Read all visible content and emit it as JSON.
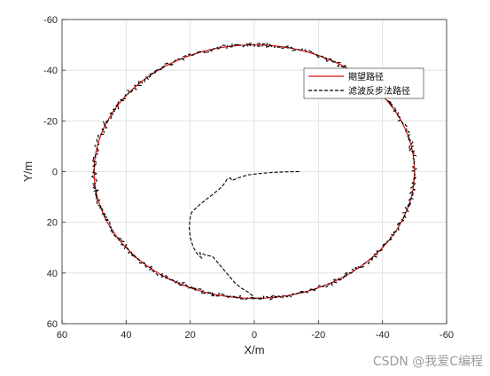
{
  "chart_data": {
    "type": "line",
    "xlabel": "X/m",
    "ylabel": "Y/m",
    "xlim": [
      60,
      -60
    ],
    "ylim": [
      -60,
      60
    ],
    "x_reversed": true,
    "y_reversed": true,
    "grid": true,
    "legend_position": "top-right",
    "xticks": [
      "60",
      "40",
      "20",
      "0",
      "-20",
      "-40",
      "-60"
    ],
    "yticks": [
      "-60",
      "-40",
      "-20",
      "0",
      "20",
      "40",
      "60"
    ],
    "series": [
      {
        "name": "期望路径",
        "color": "#e01010",
        "style": "solid",
        "shape": "circle",
        "center": [
          0,
          0
        ],
        "radius": 50
      },
      {
        "name": "滤波反步法路径",
        "color": "#000000",
        "style": "dashed",
        "noise": 0.8,
        "segments": [
          {
            "kind": "points",
            "points": [
              [
                -14,
                0
              ],
              [
                -10,
                0.1
              ],
              [
                -6,
                0.3
              ],
              [
                -2,
                0.7
              ],
              [
                2,
                1.3
              ],
              [
                5,
                2.5
              ],
              [
                7,
                3.5
              ],
              [
                7.5,
                2.5
              ],
              [
                8.5,
                3
              ],
              [
                9.5,
                5
              ],
              [
                11,
                7
              ],
              [
                14,
                10
              ],
              [
                17,
                13
              ],
              [
                19.5,
                16
              ],
              [
                20,
                18
              ],
              [
                20.3,
                22
              ],
              [
                20,
                26
              ],
              [
                19,
                30
              ],
              [
                17.5,
                33
              ],
              [
                16.5,
                34
              ],
              [
                17,
                32
              ],
              [
                15,
                33
              ],
              [
                13,
                33.5
              ],
              [
                12,
                35
              ],
              [
                10,
                38
              ],
              [
                8,
                41
              ],
              [
                6,
                44
              ],
              [
                4,
                46
              ],
              [
                2,
                47.5
              ],
              [
                0.5,
                49
              ],
              [
                0,
                50
              ]
            ]
          },
          {
            "kind": "arc",
            "radius": 50,
            "from_deg": 90,
            "to_deg": 450
          }
        ]
      }
    ]
  },
  "watermark": "CSDN @我爱C编程"
}
